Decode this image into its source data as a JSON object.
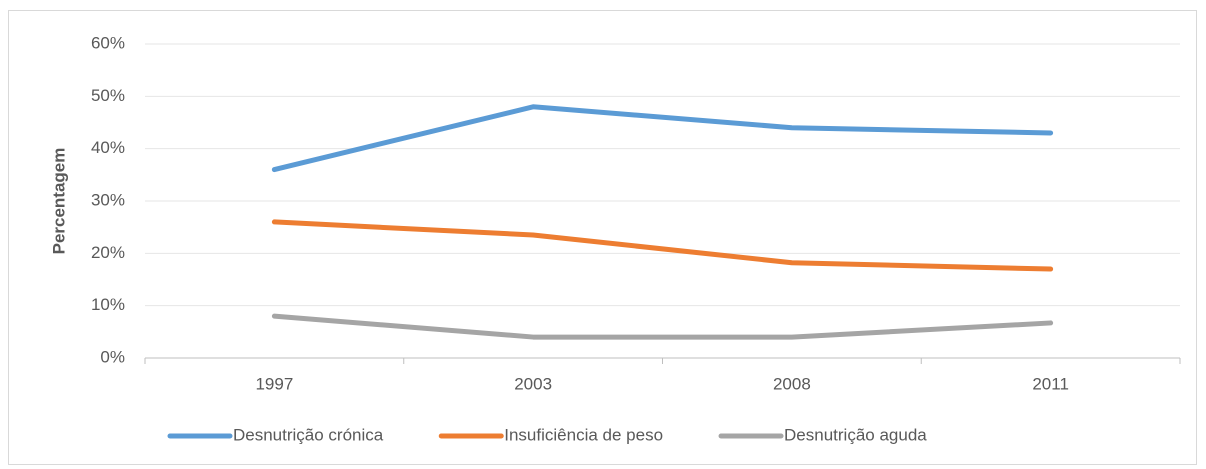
{
  "chart_data": {
    "type": "line",
    "y_label": "Percentagem",
    "categories": [
      "1997",
      "2003",
      "2008",
      "2011"
    ],
    "series": [
      {
        "name": "Desnutrição crónica",
        "color": "#5b9bd5",
        "values": [
          36,
          48,
          44,
          43
        ]
      },
      {
        "name": "Insuficiência de peso",
        "color": "#ed7d31",
        "values": [
          26,
          23.5,
          18.2,
          17
        ]
      },
      {
        "name": "Desnutrição aguda",
        "color": "#a5a5a5",
        "values": [
          8,
          4,
          4,
          6.7
        ]
      }
    ],
    "ylim": [
      0,
      60
    ],
    "yticks": [
      {
        "value": 0,
        "label": "0%"
      },
      {
        "value": 10,
        "label": "10%"
      },
      {
        "value": 20,
        "label": "20%"
      },
      {
        "value": 30,
        "label": "30%"
      },
      {
        "value": 40,
        "label": "40%"
      },
      {
        "value": 50,
        "label": "50%"
      },
      {
        "value": 60,
        "label": "60%"
      }
    ],
    "grid": true,
    "legend": "bottom"
  }
}
